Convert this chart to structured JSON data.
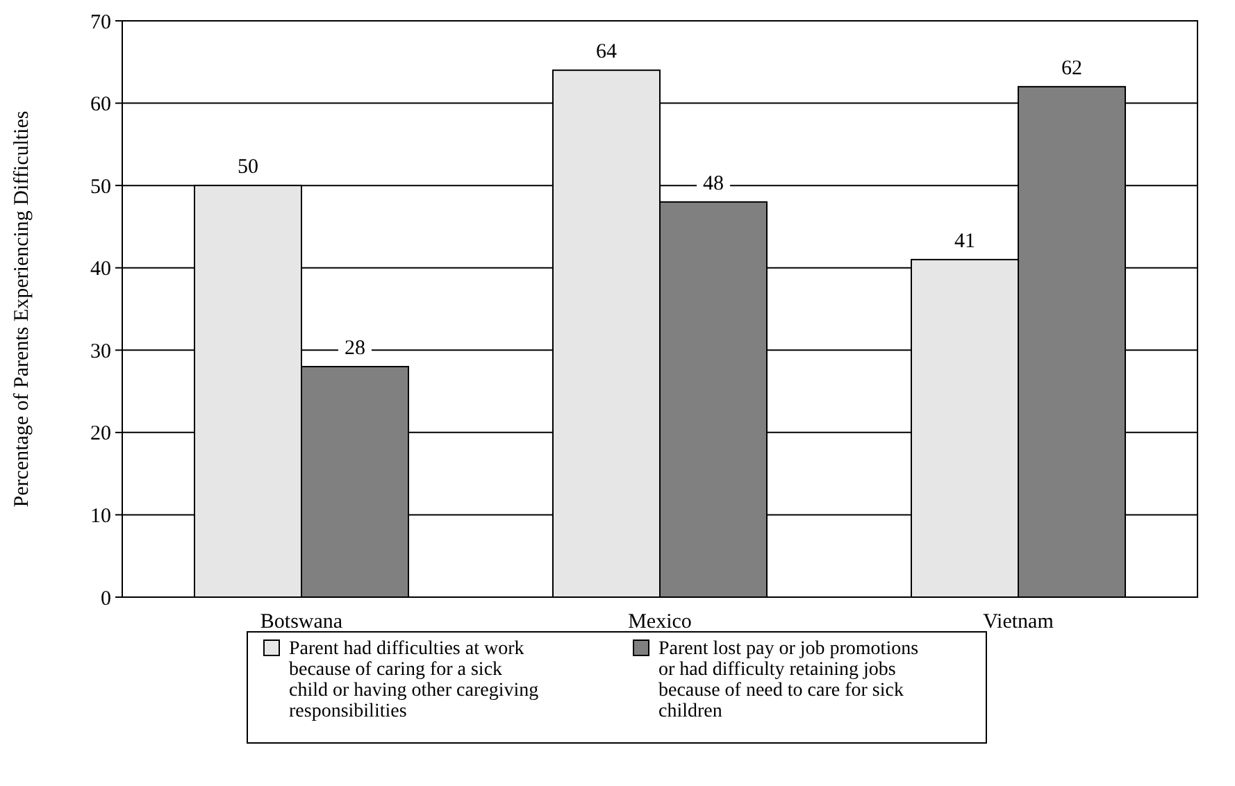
{
  "chart_data": {
    "type": "bar",
    "ylabel": "Percentage of Parents Experiencing Difficulties",
    "categories": [
      "Botswana",
      "Mexico",
      "Vietnam"
    ],
    "series": [
      {
        "name": "Parent had difficulties at work because of caring for a sick child or having other caregiving responsibilities",
        "color": "#e6e6e6",
        "values": [
          50,
          64,
          41
        ]
      },
      {
        "name": "Parent lost pay or job promotions or had difficulty retaining jobs because of need to care for sick children",
        "color": "#808080",
        "values": [
          28,
          48,
          62
        ]
      }
    ],
    "ylim": [
      0,
      70
    ],
    "yticks": [
      0,
      10,
      20,
      30,
      40,
      50,
      60,
      70
    ],
    "grid": "y",
    "legend": "bottom",
    "data_labels": true
  }
}
